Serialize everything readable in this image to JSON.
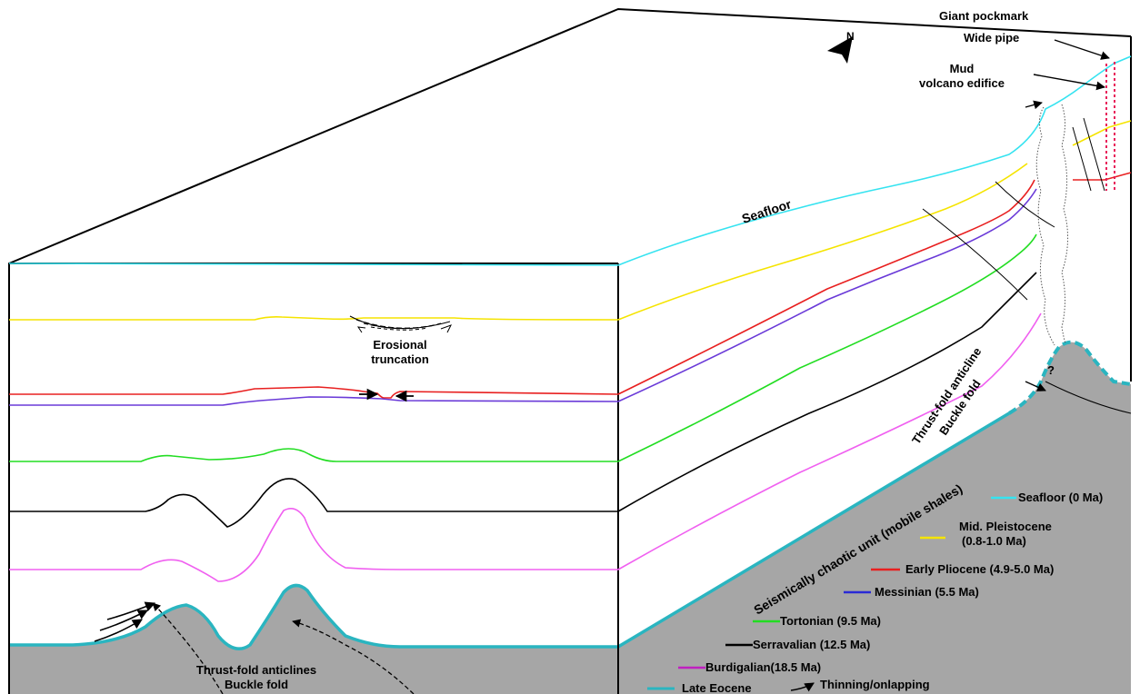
{
  "labels": {
    "seafloor": "Seafloor",
    "erosional_1": "Erosional",
    "erosional_2": "truncation",
    "giant_pockmark": "Giant pockmark",
    "wide_pipe": "Wide pipe",
    "mud_1": "Mud",
    "mud_2": "volcano edifice",
    "north": "N",
    "thrust_right_1": "Thrust-fold anticline",
    "thrust_right_2": "Buckle fold",
    "question": "?",
    "chaotic": "Seismically chaotic unit (mobile shales)",
    "thrust_left_1": "Thrust-fold anticlines",
    "thrust_left_2": "Buckle fold"
  },
  "legend": [
    {
      "label": "Seafloor (0 Ma)",
      "color": "#35e3f0"
    },
    {
      "label": "Mid. Pleistocene",
      "label2": "(0.8-1.0 Ma)",
      "color": "#f5e400"
    },
    {
      "label": "Early Pliocene (4.9-5.0 Ma)",
      "color": "#e82020"
    },
    {
      "label": "Messinian (5.5 Ma)",
      "color": "#2a2ad6"
    },
    {
      "label": "Tortonian (9.5 Ma)",
      "color": "#22dd22"
    },
    {
      "label": "Serravalian (12.5 Ma)",
      "color": "#000000"
    },
    {
      "label": "Burdigalian(18.5 Ma)",
      "color": "#c020c0"
    },
    {
      "label": "Late Eocene",
      "color": "#2ab5c0"
    }
  ],
  "legend_extra": "Thinning/onlapping",
  "colors": {
    "seafloor": "#35e3f0",
    "pleistocene": "#f5e400",
    "pliocene": "#e82020",
    "messinian": "#6a3ad8",
    "tortonian": "#22dd22",
    "serravalian": "#000000",
    "burdigalian": "#f060f0",
    "eocene": "#2ab5c0",
    "shale": "#a6a6a6",
    "pipe": "#e8205a"
  }
}
